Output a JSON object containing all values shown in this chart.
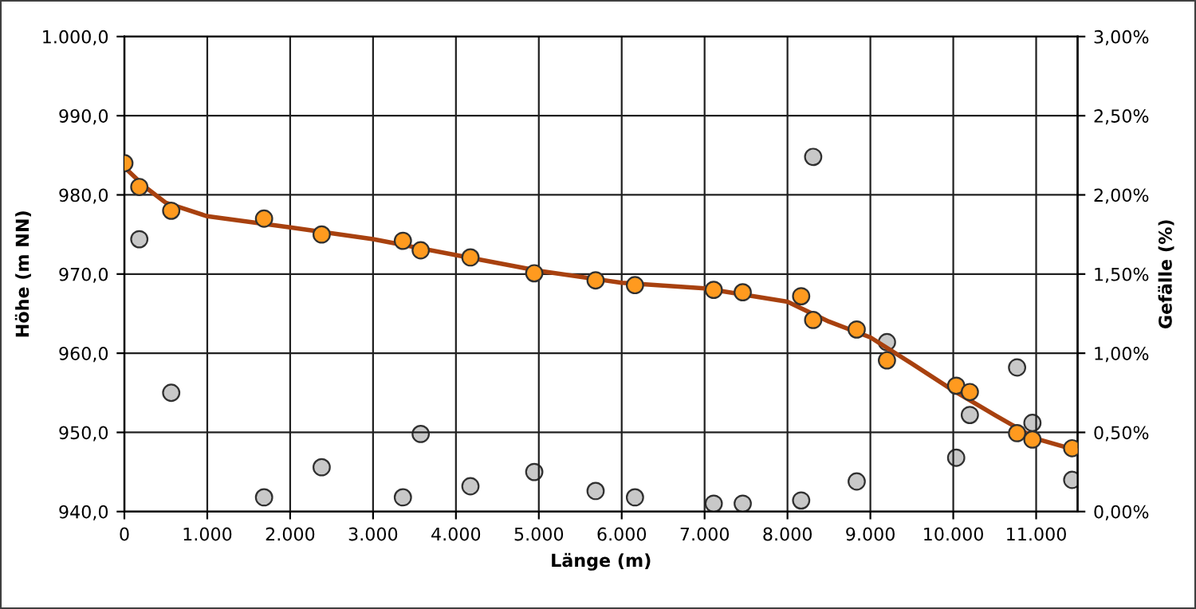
{
  "chart_data": {
    "type": "scatter",
    "xlabel": "Länge (m)",
    "ylabel": "Höhe (m NN)",
    "y2label": "Gefälle (%)",
    "xlim": [
      0,
      11500
    ],
    "xticks": [
      {
        "value": 0,
        "label": "0"
      },
      {
        "value": 1000,
        "label": "1.000"
      },
      {
        "value": 2000,
        "label": "2.000"
      },
      {
        "value": 3000,
        "label": "3.000"
      },
      {
        "value": 4000,
        "label": "4.000"
      },
      {
        "value": 5000,
        "label": "5.000"
      },
      {
        "value": 6000,
        "label": "6.000"
      },
      {
        "value": 7000,
        "label": "7.000"
      },
      {
        "value": 8000,
        "label": "8.000"
      },
      {
        "value": 9000,
        "label": "9.000"
      },
      {
        "value": 10000,
        "label": "10.000"
      },
      {
        "value": 11000,
        "label": "11.000"
      }
    ],
    "ylim": [
      940,
      1000
    ],
    "yticks": [
      {
        "value": 940,
        "label": "940,0"
      },
      {
        "value": 950,
        "label": "950,0"
      },
      {
        "value": 960,
        "label": "960,0"
      },
      {
        "value": 970,
        "label": "970,0"
      },
      {
        "value": 980,
        "label": "980,0"
      },
      {
        "value": 990,
        "label": "990,0"
      },
      {
        "value": 1000,
        "label": "1.000,0"
      }
    ],
    "y2lim": [
      0,
      3
    ],
    "y2ticks": [
      {
        "value": 0,
        "label": "0,00%"
      },
      {
        "value": 0.5,
        "label": "0,50%"
      },
      {
        "value": 1,
        "label": "1,00%"
      },
      {
        "value": 1.5,
        "label": "1,50%"
      },
      {
        "value": 2,
        "label": "2,00%"
      },
      {
        "value": 2.5,
        "label": "2,50%"
      },
      {
        "value": 3,
        "label": "3,00%"
      }
    ],
    "grid": true,
    "series": [
      {
        "type": "line",
        "marker": "none",
        "color": "#a8410f",
        "x": [
          0,
          250,
          500,
          1000,
          2000,
          3000,
          4000,
          5000,
          6000,
          7000,
          8000,
          8500,
          9000,
          9500,
          10000,
          10500,
          11000,
          11500
        ],
        "values": [
          983.5,
          981,
          979,
          977.3,
          975.9,
          974.4,
          972.4,
          970.4,
          968.9,
          968.2,
          966.5,
          964.0,
          962.0,
          958.7,
          955.3,
          952.2,
          949.2,
          947.7
        ]
      },
      {
        "type": "scatter",
        "marker": "circle",
        "axis": "y2",
        "color": "#c8c8c8",
        "x": [
          180,
          565,
          1685,
          2380,
          3360,
          3575,
          4175,
          4945,
          5685,
          6160,
          7110,
          7460,
          8165,
          8310,
          8835,
          9200,
          10035,
          10200,
          10770,
          10955,
          11435
        ],
        "values": [
          1.72,
          0.75,
          0.09,
          0.28,
          0.09,
          0.49,
          0.16,
          0.25,
          0.13,
          0.09,
          0.05,
          0.05,
          0.07,
          2.24,
          0.19,
          1.07,
          0.34,
          0.61,
          0.91,
          0.56,
          0.2
        ]
      },
      {
        "marker": "circle",
        "color": "#ff9a1f",
        "x": [
          0,
          180,
          565,
          1685,
          2380,
          3360,
          3575,
          4175,
          4945,
          5685,
          6160,
          7110,
          7460,
          8165,
          8310,
          8835,
          9200,
          10035,
          10200,
          10770,
          10955,
          11435
        ],
        "values": [
          984.0,
          981.0,
          978.0,
          977.0,
          975.0,
          974.2,
          973.0,
          972.1,
          970.1,
          969.2,
          968.6,
          968.0,
          967.7,
          967.2,
          964.2,
          963.0,
          959.1,
          955.9,
          955.1,
          949.9,
          949.1,
          948.0
        ]
      }
    ]
  }
}
